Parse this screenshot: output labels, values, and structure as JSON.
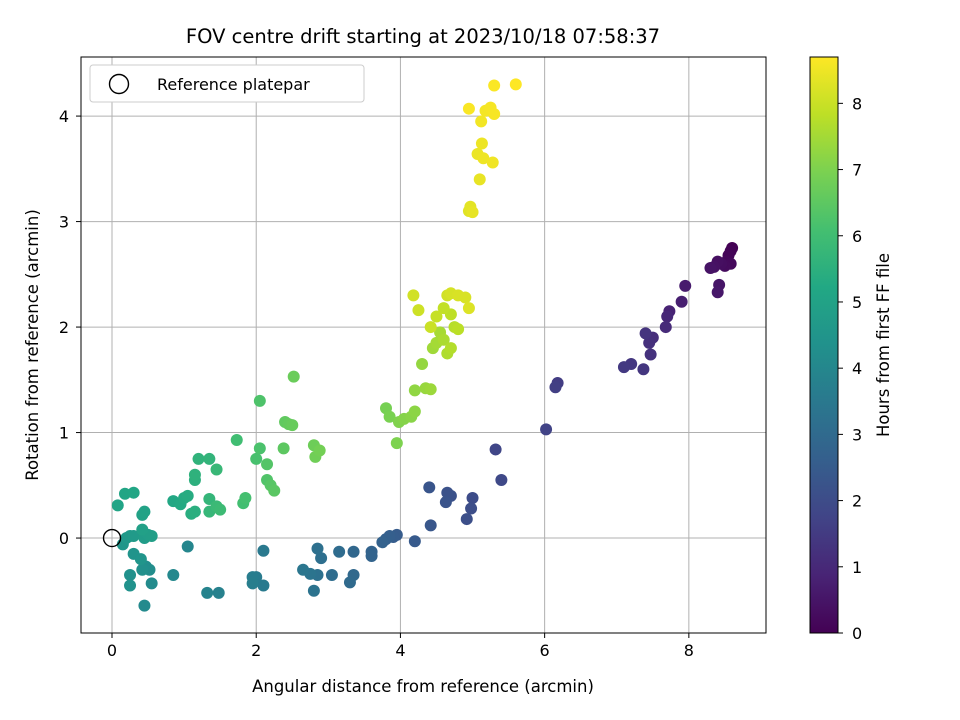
{
  "chart_data": {
    "type": "scatter",
    "title": "FOV centre drift starting at 2023/10/18 07:58:37",
    "xlabel": "Angular distance from reference (arcmin)",
    "ylabel": "Rotation from reference (arcmin)",
    "xlim": [
      -0.43,
      9.07
    ],
    "ylim": [
      -0.9,
      4.56
    ],
    "xticks": [
      "0",
      "2",
      "4",
      "6",
      "8"
    ],
    "yticks": [
      "0",
      "1",
      "2",
      "3",
      "4"
    ],
    "grid": true,
    "legend": {
      "placement": "top-left",
      "entries": [
        "Reference platepar"
      ]
    },
    "reference_point": {
      "x": 0,
      "y": 0
    },
    "colorbar": {
      "label": "Hours from first FF file",
      "range": [
        0,
        8.7
      ],
      "ticks": [
        "0",
        "1",
        "2",
        "3",
        "4",
        "5",
        "6",
        "7",
        "8"
      ]
    },
    "points": [
      [
        8.6,
        2.75,
        0.0
      ],
      [
        8.58,
        2.72,
        0.05
      ],
      [
        8.55,
        2.68,
        0.1
      ],
      [
        8.52,
        2.62,
        0.15
      ],
      [
        8.58,
        2.6,
        0.2
      ],
      [
        8.5,
        2.58,
        0.25
      ],
      [
        8.45,
        2.6,
        0.3
      ],
      [
        8.4,
        2.62,
        0.35
      ],
      [
        8.35,
        2.57,
        0.4
      ],
      [
        8.3,
        2.56,
        0.45
      ],
      [
        8.42,
        2.4,
        0.5
      ],
      [
        8.4,
        2.33,
        0.55
      ],
      [
        7.95,
        2.39,
        0.65
      ],
      [
        7.9,
        2.24,
        0.75
      ],
      [
        7.73,
        2.15,
        0.85
      ],
      [
        7.7,
        2.1,
        0.95
      ],
      [
        7.68,
        2.0,
        1.05
      ],
      [
        7.5,
        1.9,
        1.15
      ],
      [
        7.45,
        1.85,
        1.2
      ],
      [
        7.47,
        1.74,
        1.25
      ],
      [
        7.4,
        1.94,
        1.3
      ],
      [
        7.37,
        1.6,
        1.35
      ],
      [
        7.2,
        1.65,
        1.4
      ],
      [
        7.1,
        1.62,
        1.45
      ],
      [
        6.18,
        1.47,
        1.55
      ],
      [
        6.15,
        1.43,
        1.6
      ],
      [
        6.02,
        1.03,
        1.7
      ],
      [
        5.32,
        0.84,
        1.8
      ],
      [
        5.4,
        0.55,
        1.9
      ],
      [
        5.0,
        0.38,
        2.0
      ],
      [
        4.98,
        0.28,
        2.05
      ],
      [
        4.92,
        0.18,
        2.1
      ],
      [
        4.7,
        0.4,
        2.15
      ],
      [
        4.65,
        0.43,
        2.2
      ],
      [
        4.63,
        0.34,
        2.25
      ],
      [
        4.4,
        0.48,
        2.3
      ],
      [
        4.42,
        0.12,
        2.35
      ],
      [
        4.2,
        -0.03,
        2.45
      ],
      [
        3.95,
        0.03,
        2.5
      ],
      [
        3.9,
        0.01,
        2.55
      ],
      [
        3.85,
        0.02,
        2.6
      ],
      [
        3.8,
        -0.01,
        2.65
      ],
      [
        3.75,
        -0.04,
        2.7
      ],
      [
        3.6,
        -0.13,
        2.75
      ],
      [
        3.6,
        -0.17,
        2.8
      ],
      [
        3.35,
        -0.13,
        2.9
      ],
      [
        3.35,
        -0.35,
        2.95
      ],
      [
        3.3,
        -0.42,
        3.0
      ],
      [
        3.15,
        -0.13,
        3.05
      ],
      [
        3.05,
        -0.35,
        3.1
      ],
      [
        2.9,
        -0.19,
        3.15
      ],
      [
        2.85,
        -0.1,
        3.2
      ],
      [
        2.85,
        -0.35,
        3.25
      ],
      [
        2.8,
        -0.5,
        3.3
      ],
      [
        2.75,
        -0.34,
        3.35
      ],
      [
        2.65,
        -0.3,
        3.4
      ],
      [
        2.1,
        -0.12,
        3.5
      ],
      [
        2.1,
        -0.45,
        3.55
      ],
      [
        2.0,
        -0.37,
        3.6
      ],
      [
        1.95,
        -0.37,
        3.65
      ],
      [
        1.95,
        -0.43,
        3.7
      ],
      [
        1.48,
        -0.52,
        3.8
      ],
      [
        1.32,
        -0.52,
        3.85
      ],
      [
        1.05,
        -0.08,
        3.95
      ],
      [
        0.85,
        -0.35,
        4.05
      ],
      [
        0.45,
        -0.64,
        4.1
      ],
      [
        0.55,
        -0.43,
        4.15
      ],
      [
        0.52,
        -0.3,
        4.2
      ],
      [
        0.47,
        -0.27,
        4.25
      ],
      [
        0.42,
        -0.3,
        4.3
      ],
      [
        0.25,
        -0.35,
        4.35
      ],
      [
        0.25,
        -0.45,
        4.4
      ],
      [
        0.3,
        -0.15,
        4.45
      ],
      [
        0.4,
        -0.2,
        4.5
      ],
      [
        0.15,
        -0.06,
        4.55
      ],
      [
        0.2,
        0.0,
        4.6
      ],
      [
        0.25,
        0.02,
        4.65
      ],
      [
        0.3,
        0.02,
        4.7
      ],
      [
        0.45,
        0.0,
        4.75
      ],
      [
        0.5,
        0.03,
        4.8
      ],
      [
        0.55,
        0.02,
        4.85
      ],
      [
        0.42,
        0.08,
        4.9
      ],
      [
        0.42,
        0.22,
        4.95
      ],
      [
        0.45,
        0.25,
        5.0
      ],
      [
        0.08,
        0.31,
        5.05
      ],
      [
        0.18,
        0.42,
        5.1
      ],
      [
        0.3,
        0.43,
        5.15
      ],
      [
        0.85,
        0.35,
        5.2
      ],
      [
        0.95,
        0.32,
        5.25
      ],
      [
        1.0,
        0.38,
        5.3
      ],
      [
        1.05,
        0.4,
        5.35
      ],
      [
        1.1,
        0.23,
        5.4
      ],
      [
        1.15,
        0.25,
        5.45
      ],
      [
        1.15,
        0.55,
        5.5
      ],
      [
        1.15,
        0.6,
        5.55
      ],
      [
        1.2,
        0.75,
        5.6
      ],
      [
        1.35,
        0.75,
        5.65
      ],
      [
        1.35,
        0.37,
        5.7
      ],
      [
        1.35,
        0.25,
        5.75
      ],
      [
        1.45,
        0.65,
        5.8
      ],
      [
        1.45,
        0.3,
        5.85
      ],
      [
        1.5,
        0.27,
        5.9
      ],
      [
        1.73,
        0.93,
        6.0
      ],
      [
        1.82,
        0.33,
        6.05
      ],
      [
        1.85,
        0.38,
        6.1
      ],
      [
        2.0,
        0.75,
        6.15
      ],
      [
        2.05,
        0.85,
        6.2
      ],
      [
        2.05,
        1.3,
        6.25
      ],
      [
        2.15,
        0.55,
        6.3
      ],
      [
        2.15,
        0.7,
        6.35
      ],
      [
        2.2,
        0.5,
        6.4
      ],
      [
        2.25,
        0.45,
        6.45
      ],
      [
        2.38,
        0.85,
        6.5
      ],
      [
        2.4,
        1.1,
        6.55
      ],
      [
        2.45,
        1.08,
        6.6
      ],
      [
        2.5,
        1.07,
        6.65
      ],
      [
        2.52,
        1.53,
        6.7
      ],
      [
        2.8,
        0.88,
        6.75
      ],
      [
        2.82,
        0.77,
        6.8
      ],
      [
        2.88,
        0.83,
        6.85
      ],
      [
        3.8,
        1.23,
        6.9
      ],
      [
        3.85,
        1.15,
        6.95
      ],
      [
        3.95,
        0.9,
        7.0
      ],
      [
        3.98,
        1.1,
        7.05
      ],
      [
        4.05,
        1.13,
        7.1
      ],
      [
        4.15,
        1.15,
        7.15
      ],
      [
        4.2,
        1.2,
        7.2
      ],
      [
        4.2,
        1.4,
        7.25
      ],
      [
        4.3,
        1.65,
        7.3
      ],
      [
        4.35,
        1.42,
        7.35
      ],
      [
        4.42,
        1.41,
        7.4
      ],
      [
        4.45,
        1.8,
        7.45
      ],
      [
        4.5,
        1.85,
        7.5
      ],
      [
        4.55,
        1.95,
        7.55
      ],
      [
        4.6,
        1.88,
        7.6
      ],
      [
        4.65,
        1.75,
        7.65
      ],
      [
        4.7,
        1.8,
        7.7
      ],
      [
        4.75,
        2.0,
        7.75
      ],
      [
        4.8,
        1.98,
        7.8
      ],
      [
        4.7,
        2.12,
        7.85
      ],
      [
        4.6,
        2.18,
        7.9
      ],
      [
        4.5,
        2.1,
        7.95
      ],
      [
        4.42,
        2.0,
        8.0
      ],
      [
        4.25,
        2.16,
        8.05
      ],
      [
        4.18,
        2.3,
        8.1
      ],
      [
        4.65,
        2.3,
        8.1
      ],
      [
        4.7,
        2.32,
        8.15
      ],
      [
        4.8,
        2.3,
        8.2
      ],
      [
        4.9,
        2.28,
        8.2
      ],
      [
        4.95,
        2.18,
        8.25
      ],
      [
        4.95,
        3.1,
        8.3
      ],
      [
        4.97,
        3.14,
        8.35
      ],
      [
        5.0,
        3.09,
        8.4
      ],
      [
        5.1,
        3.4,
        8.42
      ],
      [
        5.07,
        3.64,
        8.45
      ],
      [
        5.13,
        3.74,
        8.48
      ],
      [
        5.15,
        3.6,
        8.5
      ],
      [
        5.28,
        3.56,
        8.52
      ],
      [
        5.12,
        3.95,
        8.55
      ],
      [
        5.18,
        4.05,
        8.58
      ],
      [
        5.25,
        4.08,
        8.6
      ],
      [
        5.3,
        4.02,
        8.62
      ],
      [
        4.95,
        4.07,
        8.64
      ],
      [
        5.3,
        4.29,
        8.66
      ],
      [
        5.6,
        4.3,
        8.7
      ]
    ]
  }
}
